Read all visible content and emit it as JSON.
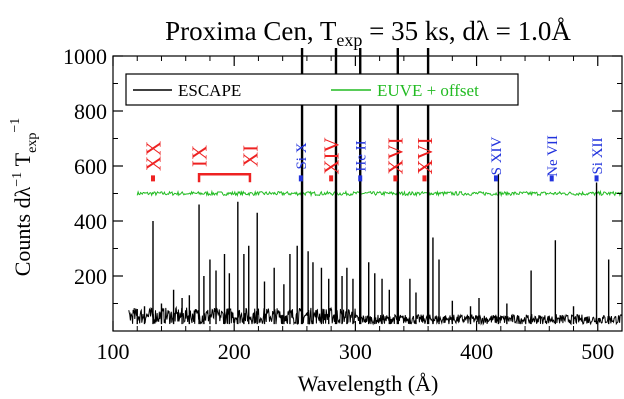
{
  "chart_data": {
    "type": "line",
    "title": {
      "base": "Proxima Cen, T",
      "exp_sub": "exp",
      "mid": " = 35 ks, d",
      "lambda": "λ",
      "tail": " = 1.0Å"
    },
    "xlabel": "Wavelength (Å)",
    "ylabel": {
      "main": "Counts d",
      "lambda": "λ",
      "sup1": "−1",
      "t": " T",
      "exp_sub": "exp",
      "sup2": "−1"
    },
    "xlim": [
      100,
      520
    ],
    "ylim": [
      0,
      1000
    ],
    "xticks": [
      100,
      200,
      300,
      400,
      500
    ],
    "yticks": [
      200,
      400,
      600,
      800,
      1000
    ],
    "legend": {
      "position": "top-left",
      "entries": [
        {
          "name": "ESCAPE",
          "color": "#000000"
        },
        {
          "name": "EUVE + offset",
          "color": "#22bb22"
        }
      ]
    },
    "series": [
      {
        "name": "ESCAPE",
        "color": "#000000",
        "baseline": 25,
        "lines": [
          {
            "x": 120,
            "y": 80
          },
          {
            "x": 126,
            "y": 90
          },
          {
            "x": 133,
            "y": 400
          },
          {
            "x": 140,
            "y": 100
          },
          {
            "x": 150,
            "y": 150
          },
          {
            "x": 157,
            "y": 120
          },
          {
            "x": 163,
            "y": 130
          },
          {
            "x": 171,
            "y": 460
          },
          {
            "x": 175,
            "y": 200
          },
          {
            "x": 180,
            "y": 260
          },
          {
            "x": 185,
            "y": 220
          },
          {
            "x": 192,
            "y": 280
          },
          {
            "x": 196,
            "y": 210
          },
          {
            "x": 203,
            "y": 470
          },
          {
            "x": 208,
            "y": 280
          },
          {
            "x": 212,
            "y": 310
          },
          {
            "x": 219,
            "y": 430
          },
          {
            "x": 225,
            "y": 180
          },
          {
            "x": 233,
            "y": 230
          },
          {
            "x": 241,
            "y": 170
          },
          {
            "x": 246,
            "y": 280
          },
          {
            "x": 252,
            "y": 310
          },
          {
            "x": 256,
            "y": 1000
          },
          {
            "x": 261,
            "y": 290
          },
          {
            "x": 265,
            "y": 250
          },
          {
            "x": 272,
            "y": 230
          },
          {
            "x": 278,
            "y": 190
          },
          {
            "x": 284,
            "y": 1000
          },
          {
            "x": 289,
            "y": 200
          },
          {
            "x": 293,
            "y": 230
          },
          {
            "x": 298,
            "y": 190
          },
          {
            "x": 304,
            "y": 1000
          },
          {
            "x": 311,
            "y": 250
          },
          {
            "x": 316,
            "y": 210
          },
          {
            "x": 322,
            "y": 190
          },
          {
            "x": 328,
            "y": 150
          },
          {
            "x": 335,
            "y": 1000
          },
          {
            "x": 345,
            "y": 190
          },
          {
            "x": 350,
            "y": 140
          },
          {
            "x": 360,
            "y": 1000
          },
          {
            "x": 364,
            "y": 340
          },
          {
            "x": 369,
            "y": 260
          },
          {
            "x": 380,
            "y": 110
          },
          {
            "x": 395,
            "y": 90
          },
          {
            "x": 402,
            "y": 120
          },
          {
            "x": 418,
            "y": 570
          },
          {
            "x": 425,
            "y": 100
          },
          {
            "x": 445,
            "y": 220
          },
          {
            "x": 465,
            "y": 330
          },
          {
            "x": 480,
            "y": 90
          },
          {
            "x": 499,
            "y": 540
          },
          {
            "x": 509,
            "y": 260
          }
        ]
      },
      {
        "name": "EUVE + offset",
        "color": "#22bb22",
        "level": 500
      }
    ],
    "annotations": [
      {
        "text": "XX",
        "x": 133,
        "color": "#ee2222",
        "size": "large",
        "tick": true
      },
      {
        "text": "IX",
        "x": 171,
        "color": "#ee2222",
        "size": "large",
        "tick": false
      },
      {
        "text": "XI",
        "x": 213,
        "color": "#ee2222",
        "size": "large",
        "tick": false
      },
      {
        "text": "Si X",
        "x": 255,
        "color": "#2233dd",
        "size": "small",
        "tick": true
      },
      {
        "text": "XIV",
        "x": 280,
        "color": "#ee2222",
        "size": "large",
        "tick": true
      },
      {
        "text": "He II",
        "x": 304,
        "color": "#2233dd",
        "size": "small",
        "tick": true
      },
      {
        "text": "XVI",
        "x": 333,
        "color": "#ee2222",
        "size": "large",
        "tick": true
      },
      {
        "text": "XVI",
        "x": 357,
        "color": "#ee2222",
        "size": "large",
        "tick": true
      },
      {
        "text": "S XIV",
        "x": 416,
        "color": "#2233dd",
        "size": "small",
        "tick": true
      },
      {
        "text": "Ne VII",
        "x": 462,
        "color": "#2233dd",
        "size": "small",
        "tick": true
      },
      {
        "text": "Si XII",
        "x": 499,
        "color": "#2233dd",
        "size": "small",
        "tick": true
      }
    ],
    "bracket": {
      "x1": 171,
      "x2": 213,
      "y": 570,
      "color": "#ee2222"
    },
    "grid": false
  }
}
